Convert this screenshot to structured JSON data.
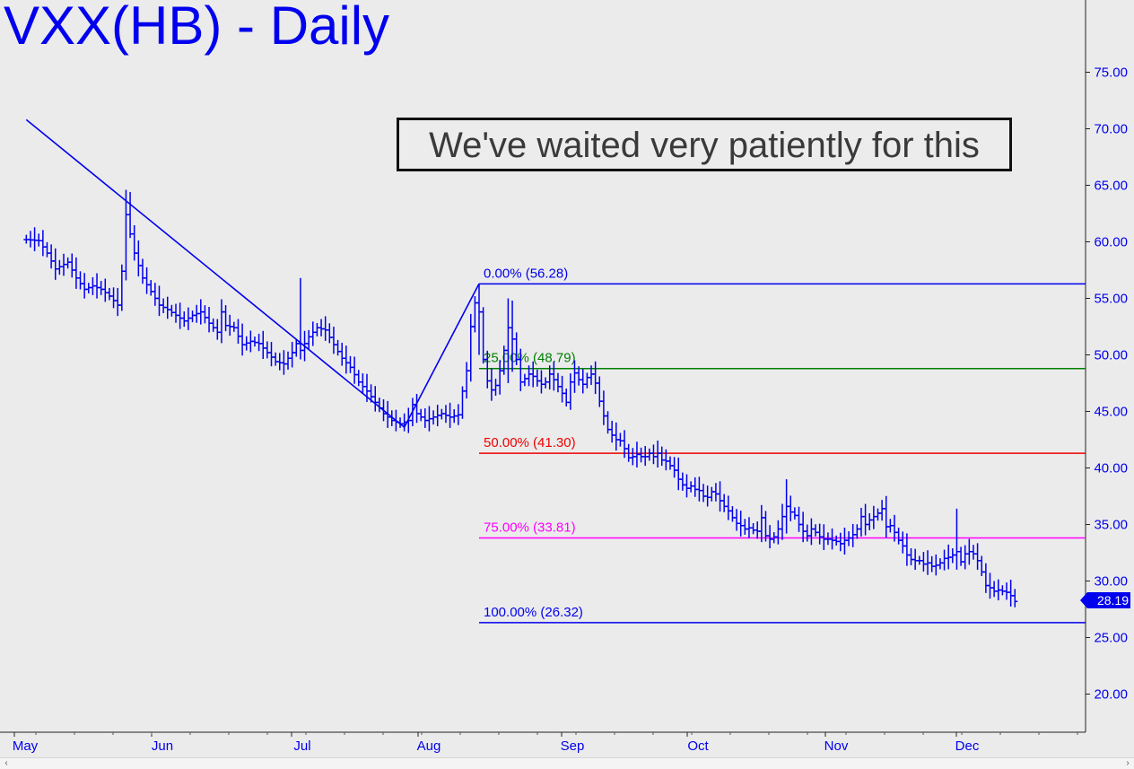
{
  "title": "VXX(HB) - Daily",
  "annotation": "We've waited very patiently for this",
  "last_price": "28.19",
  "colors": {
    "series": "#0000ee",
    "fib_0": "#0000ee",
    "fib_25": "#008000",
    "fib_50": "#ee0000",
    "fib_75": "#ff00ff",
    "fib_100": "#0000ee",
    "background": "#ebebeb"
  },
  "scrollbar": {
    "left_icon": "chevron-left-icon",
    "right_icon": "chevron-right-icon"
  },
  "chart_data": {
    "type": "ohlc",
    "y_axis": {
      "min": 15,
      "max": 80,
      "ticks": [
        "20.00",
        "25.00",
        "30.00",
        "35.00",
        "40.00",
        "45.00",
        "50.00",
        "55.00",
        "60.00",
        "65.00",
        "70.00",
        "75.00"
      ],
      "side": "right"
    },
    "x_axis": {
      "labels": [
        "May",
        "Jun",
        "Jul",
        "Aug",
        "Sep",
        "Oct",
        "Nov",
        "Dec"
      ]
    },
    "grid": false,
    "fib_levels": [
      {
        "label": "0.00% (56.28)",
        "value": 56.28,
        "color": "#0000ee"
      },
      {
        "label": "25.00% (48.79)",
        "value": 48.79,
        "color": "#008000"
      },
      {
        "label": "50.00% (41.30)",
        "value": 41.3,
        "color": "#ee0000"
      },
      {
        "label": "75.00% (33.81)",
        "value": 33.81,
        "color": "#ff00ff"
      },
      {
        "label": "100.00% (26.32)",
        "value": 26.32,
        "color": "#0000ee"
      }
    ],
    "trendlines": [
      {
        "from": [
          0,
          70.8
        ],
        "to": [
          91,
          43.6
        ]
      },
      {
        "from": [
          91,
          43.6
        ],
        "to": [
          109,
          56.3
        ]
      }
    ],
    "close_path": [
      [
        0,
        60.2
      ],
      [
        3,
        60.1
      ],
      [
        5,
        59.0
      ],
      [
        7,
        57.6
      ],
      [
        10,
        58.2
      ],
      [
        12,
        56.8
      ],
      [
        14,
        55.8
      ],
      [
        16,
        56.1
      ],
      [
        18,
        55.8
      ],
      [
        20,
        55.2
      ],
      [
        22,
        54.4
      ],
      [
        23,
        57.4
      ],
      [
        24,
        62.4
      ],
      [
        26,
        59.0
      ],
      [
        28,
        56.8
      ],
      [
        30,
        55.6
      ],
      [
        32,
        54.4
      ],
      [
        34,
        54.0
      ],
      [
        36,
        53.5
      ],
      [
        38,
        53.0
      ],
      [
        40,
        53.5
      ],
      [
        42,
        53.8
      ],
      [
        44,
        52.8
      ],
      [
        46,
        52.0
      ],
      [
        47,
        53.8
      ],
      [
        48,
        52.6
      ],
      [
        50,
        52.4
      ],
      [
        52,
        50.9
      ],
      [
        54,
        51.2
      ],
      [
        56,
        51.0
      ],
      [
        58,
        50.2
      ],
      [
        60,
        49.4
      ],
      [
        62,
        49.2
      ],
      [
        64,
        50.2
      ],
      [
        65,
        51.0
      ],
      [
        66,
        50.4
      ],
      [
        68,
        51.6
      ],
      [
        70,
        52.4
      ],
      [
        72,
        52.2
      ],
      [
        74,
        50.9
      ],
      [
        76,
        49.7
      ],
      [
        78,
        48.9
      ],
      [
        80,
        47.6
      ],
      [
        82,
        46.8
      ],
      [
        84,
        45.8
      ],
      [
        86,
        44.8
      ],
      [
        88,
        44.2
      ],
      [
        90,
        43.9
      ],
      [
        92,
        44.2
      ],
      [
        93,
        45.6
      ],
      [
        94,
        44.8
      ],
      [
        96,
        44.2
      ],
      [
        98,
        44.5
      ],
      [
        100,
        44.8
      ],
      [
        102,
        44.5
      ],
      [
        104,
        44.7
      ],
      [
        105,
        46.8
      ],
      [
        106,
        48.6
      ],
      [
        107,
        52.5
      ],
      [
        108,
        54.6
      ],
      [
        109,
        53.8
      ],
      [
        110,
        49.6
      ],
      [
        111,
        47.7
      ],
      [
        112,
        46.9
      ],
      [
        113,
        47.3
      ],
      [
        114,
        48.6
      ],
      [
        115,
        50.4
      ],
      [
        116,
        52.4
      ],
      [
        117,
        51.4
      ],
      [
        118,
        49.6
      ],
      [
        119,
        47.6
      ],
      [
        120,
        47.9
      ],
      [
        121,
        48.3
      ],
      [
        122,
        48.1
      ],
      [
        123,
        47.7
      ],
      [
        124,
        47.4
      ],
      [
        125,
        47.6
      ],
      [
        126,
        48.3
      ],
      [
        127,
        47.8
      ],
      [
        128,
        47.2
      ],
      [
        129,
        46.6
      ],
      [
        130,
        45.8
      ],
      [
        131,
        47.6
      ],
      [
        132,
        48.4
      ],
      [
        133,
        47.8
      ],
      [
        134,
        47.4
      ],
      [
        135,
        48.0
      ],
      [
        136,
        48.3
      ],
      [
        137,
        47.5
      ],
      [
        138,
        45.9
      ],
      [
        139,
        44.6
      ],
      [
        140,
        43.4
      ],
      [
        141,
        42.9
      ],
      [
        142,
        42.5
      ],
      [
        143,
        42.4
      ],
      [
        144,
        41.7
      ],
      [
        145,
        40.9
      ],
      [
        146,
        41.0
      ],
      [
        147,
        41.2
      ],
      [
        148,
        41.0
      ],
      [
        149,
        41.0
      ],
      [
        150,
        41.3
      ],
      [
        151,
        41.0
      ],
      [
        152,
        41.3
      ],
      [
        153,
        40.7
      ],
      [
        154,
        40.6
      ],
      [
        155,
        40.2
      ],
      [
        156,
        39.8
      ],
      [
        157,
        39.0
      ],
      [
        158,
        38.5
      ],
      [
        159,
        38.2
      ],
      [
        160,
        38.4
      ],
      [
        161,
        38.1
      ],
      [
        162,
        38.0
      ],
      [
        163,
        37.5
      ],
      [
        164,
        37.4
      ],
      [
        165,
        37.9
      ],
      [
        166,
        37.7
      ],
      [
        167,
        37.1
      ],
      [
        168,
        36.6
      ],
      [
        169,
        36.2
      ],
      [
        170,
        35.6
      ],
      [
        171,
        35.1
      ],
      [
        172,
        34.9
      ],
      [
        173,
        34.6
      ],
      [
        174,
        34.7
      ],
      [
        175,
        34.5
      ],
      [
        176,
        34.4
      ],
      [
        177,
        35.6
      ],
      [
        178,
        34.0
      ],
      [
        179,
        33.7
      ],
      [
        180,
        33.9
      ],
      [
        181,
        34.6
      ],
      [
        182,
        35.7
      ],
      [
        183,
        36.6
      ],
      [
        184,
        36.1
      ],
      [
        185,
        35.8
      ],
      [
        186,
        35.0
      ],
      [
        187,
        34.4
      ],
      [
        188,
        34.0
      ],
      [
        189,
        34.6
      ],
      [
        190,
        34.3
      ],
      [
        191,
        33.9
      ],
      [
        192,
        33.7
      ],
      [
        193,
        33.7
      ],
      [
        194,
        33.6
      ],
      [
        195,
        33.5
      ],
      [
        196,
        33.3
      ],
      [
        197,
        33.6
      ],
      [
        198,
        33.8
      ],
      [
        199,
        34.1
      ],
      [
        200,
        34.6
      ],
      [
        201,
        35.7
      ],
      [
        202,
        35.0
      ],
      [
        203,
        35.4
      ],
      [
        204,
        35.7
      ],
      [
        205,
        36.0
      ],
      [
        206,
        36.4
      ],
      [
        207,
        34.8
      ],
      [
        208,
        34.9
      ],
      [
        209,
        34.3
      ],
      [
        210,
        33.6
      ],
      [
        211,
        33.1
      ],
      [
        212,
        32.3
      ],
      [
        213,
        31.9
      ],
      [
        214,
        31.8
      ],
      [
        215,
        31.8
      ],
      [
        216,
        31.5
      ],
      [
        217,
        31.6
      ],
      [
        218,
        31.3
      ],
      [
        219,
        31.4
      ],
      [
        220,
        31.6
      ],
      [
        221,
        32.0
      ],
      [
        222,
        32.1
      ],
      [
        223,
        32.3
      ],
      [
        224,
        32.6
      ],
      [
        225,
        31.7
      ],
      [
        226,
        32.4
      ],
      [
        227,
        32.6
      ],
      [
        228,
        32.4
      ],
      [
        229,
        31.8
      ],
      [
        230,
        30.8
      ],
      [
        231,
        29.6
      ],
      [
        232,
        29.4
      ],
      [
        233,
        29.1
      ],
      [
        234,
        29.2
      ],
      [
        235,
        29.1
      ],
      [
        236,
        29.0
      ],
      [
        237,
        28.7
      ],
      [
        238,
        28.19
      ]
    ],
    "price_spikes": [
      {
        "x": 24,
        "high": 64.6,
        "low": 57.0
      },
      {
        "x": 25,
        "high": 64.4,
        "low": 61.0
      },
      {
        "x": 66,
        "high": 56.8,
        "low": 49.6
      },
      {
        "x": 109,
        "high": 56.3,
        "low": 50.0
      },
      {
        "x": 116,
        "high": 55.0,
        "low": 47.5
      },
      {
        "x": 117,
        "high": 54.8,
        "low": 48.5
      },
      {
        "x": 183,
        "high": 39.0,
        "low": 34.2
      },
      {
        "x": 224,
        "high": 36.4,
        "low": 31.0
      }
    ]
  }
}
